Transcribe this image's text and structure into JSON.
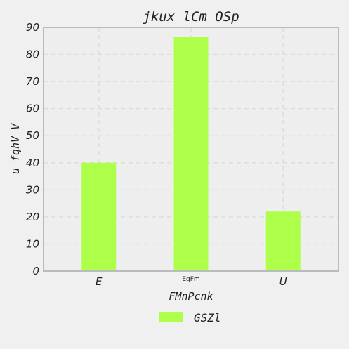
{
  "chart_data": {
    "type": "bar",
    "title": "jkux lCm OSp",
    "xlabel": "FMnPcnk",
    "ylabel": "u fqhV V",
    "categories": [
      "E",
      "EqFm",
      "U"
    ],
    "series": [
      {
        "name": "GSZl",
        "values": [
          40,
          86.5,
          22
        ],
        "color": "#adff4a"
      }
    ],
    "ylim": [
      0,
      90
    ],
    "yticks": [
      0,
      10,
      20,
      30,
      40,
      50,
      60,
      70,
      80,
      90
    ],
    "grid": true,
    "legend_position": "bottom-center",
    "colors": {
      "background": "#f0f0f0",
      "plot_background": "#eeeeee",
      "frame": "#bbbbbb",
      "grid": "#dddddd"
    }
  }
}
